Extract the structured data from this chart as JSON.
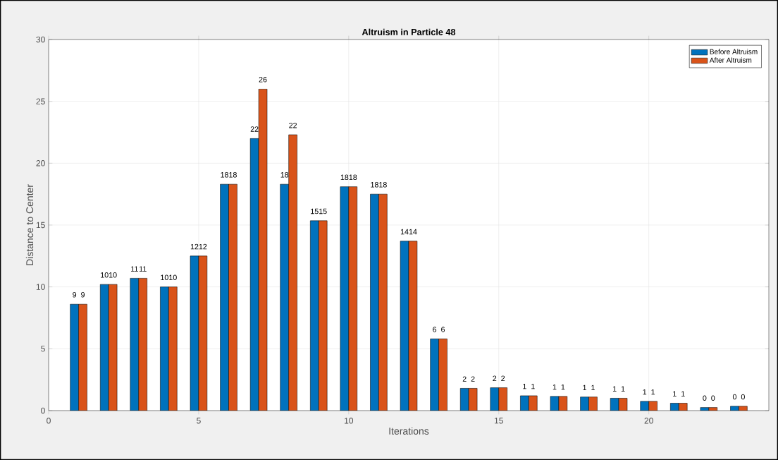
{
  "chart_data": {
    "type": "bar",
    "title": "Altruism in Particle 48",
    "xlabel": "Iterations",
    "ylabel": "Distance to Center",
    "x": [
      1,
      2,
      3,
      4,
      5,
      6,
      7,
      8,
      9,
      10,
      11,
      12,
      13,
      14,
      15,
      16,
      17,
      18,
      19,
      20,
      21,
      22,
      23
    ],
    "series": [
      {
        "name": "Before Altruism",
        "color": "#0072bd",
        "values": [
          8.6,
          10.2,
          10.7,
          10.0,
          12.5,
          18.3,
          22.0,
          18.3,
          15.35,
          18.1,
          17.5,
          13.7,
          5.8,
          1.8,
          1.85,
          1.2,
          1.15,
          1.1,
          1.0,
          0.75,
          0.6,
          0.25,
          0.35
        ],
        "value_labels": [
          "9",
          "10",
          "11",
          "10",
          "12",
          "18",
          "22",
          "18",
          "15",
          "18",
          "18",
          "14",
          "6",
          "2",
          "2",
          "1",
          "1",
          "1",
          "1",
          "1",
          "1",
          "0",
          "0"
        ]
      },
      {
        "name": "After Altruism",
        "color": "#d95319",
        "values": [
          8.6,
          10.2,
          10.7,
          10.0,
          12.5,
          18.3,
          26.0,
          22.3,
          15.35,
          18.1,
          17.5,
          13.7,
          5.8,
          1.8,
          1.85,
          1.2,
          1.15,
          1.1,
          1.0,
          0.75,
          0.6,
          0.25,
          0.35
        ],
        "value_labels": [
          "9",
          "10",
          "11",
          "10",
          "12",
          "18",
          "26",
          "22",
          "15",
          "18",
          "18",
          "14",
          "6",
          "2",
          "2",
          "1",
          "1",
          "1",
          "1",
          "1",
          "1",
          "0",
          "0"
        ]
      }
    ],
    "xlim": [
      0,
      24
    ],
    "xticks": [
      0,
      5,
      10,
      15,
      20
    ],
    "ylim": [
      0,
      30
    ],
    "yticks": [
      0,
      5,
      10,
      15,
      20,
      25,
      30
    ],
    "grid": true,
    "legend": "top right"
  }
}
